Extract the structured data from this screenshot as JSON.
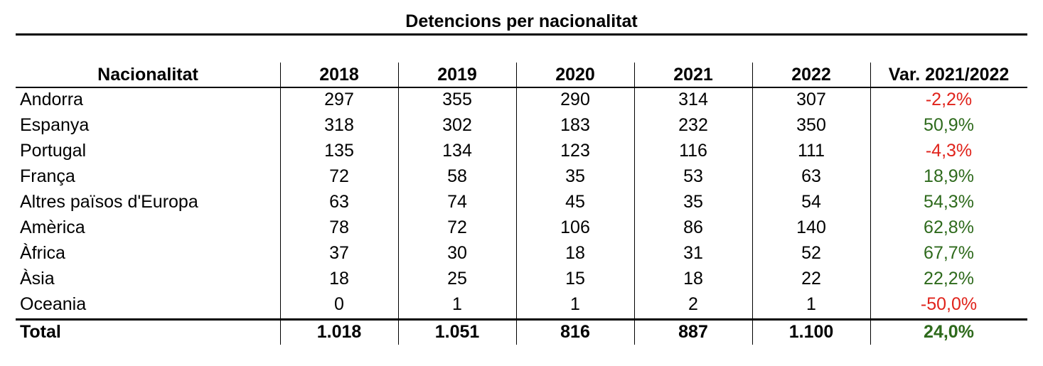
{
  "title": "Detencions per nacionalitat",
  "headers": {
    "name": "Nacionalitat",
    "y2018": "2018",
    "y2019": "2019",
    "y2020": "2020",
    "y2021": "2021",
    "y2022": "2022",
    "var": "Var. 2021/2022"
  },
  "rows": [
    {
      "name": "Andorra",
      "y2018": "297",
      "y2019": "355",
      "y2020": "290",
      "y2021": "314",
      "y2022": "307",
      "var": "-2,2%",
      "trend": "negative"
    },
    {
      "name": "Espanya",
      "y2018": "318",
      "y2019": "302",
      "y2020": "183",
      "y2021": "232",
      "y2022": "350",
      "var": "50,9%",
      "trend": "positive"
    },
    {
      "name": "Portugal",
      "y2018": "135",
      "y2019": "134",
      "y2020": "123",
      "y2021": "116",
      "y2022": "111",
      "var": "-4,3%",
      "trend": "negative"
    },
    {
      "name": "França",
      "y2018": "72",
      "y2019": "58",
      "y2020": "35",
      "y2021": "53",
      "y2022": "63",
      "var": "18,9%",
      "trend": "positive"
    },
    {
      "name": "Altres països d'Europa",
      "y2018": "63",
      "y2019": "74",
      "y2020": "45",
      "y2021": "35",
      "y2022": "54",
      "var": "54,3%",
      "trend": "positive"
    },
    {
      "name": "Amèrica",
      "y2018": "78",
      "y2019": "72",
      "y2020": "106",
      "y2021": "86",
      "y2022": "140",
      "var": "62,8%",
      "trend": "positive"
    },
    {
      "name": "Àfrica",
      "y2018": "37",
      "y2019": "30",
      "y2020": "18",
      "y2021": "31",
      "y2022": "52",
      "var": "67,7%",
      "trend": "positive"
    },
    {
      "name": "Àsia",
      "y2018": "18",
      "y2019": "25",
      "y2020": "15",
      "y2021": "18",
      "y2022": "22",
      "var": "22,2%",
      "trend": "positive"
    },
    {
      "name": "Oceania",
      "y2018": "0",
      "y2019": "1",
      "y2020": "1",
      "y2021": "2",
      "y2022": "1",
      "var": "-50,0%",
      "trend": "negative"
    }
  ],
  "total": {
    "name": "Total",
    "y2018": "1.018",
    "y2019": "1.051",
    "y2020": "816",
    "y2021": "887",
    "y2022": "1.100",
    "var": "24,0%",
    "trend": "positive"
  },
  "colors": {
    "negative": "#e0231b",
    "positive": "#2e6a1c",
    "text": "#000000"
  }
}
